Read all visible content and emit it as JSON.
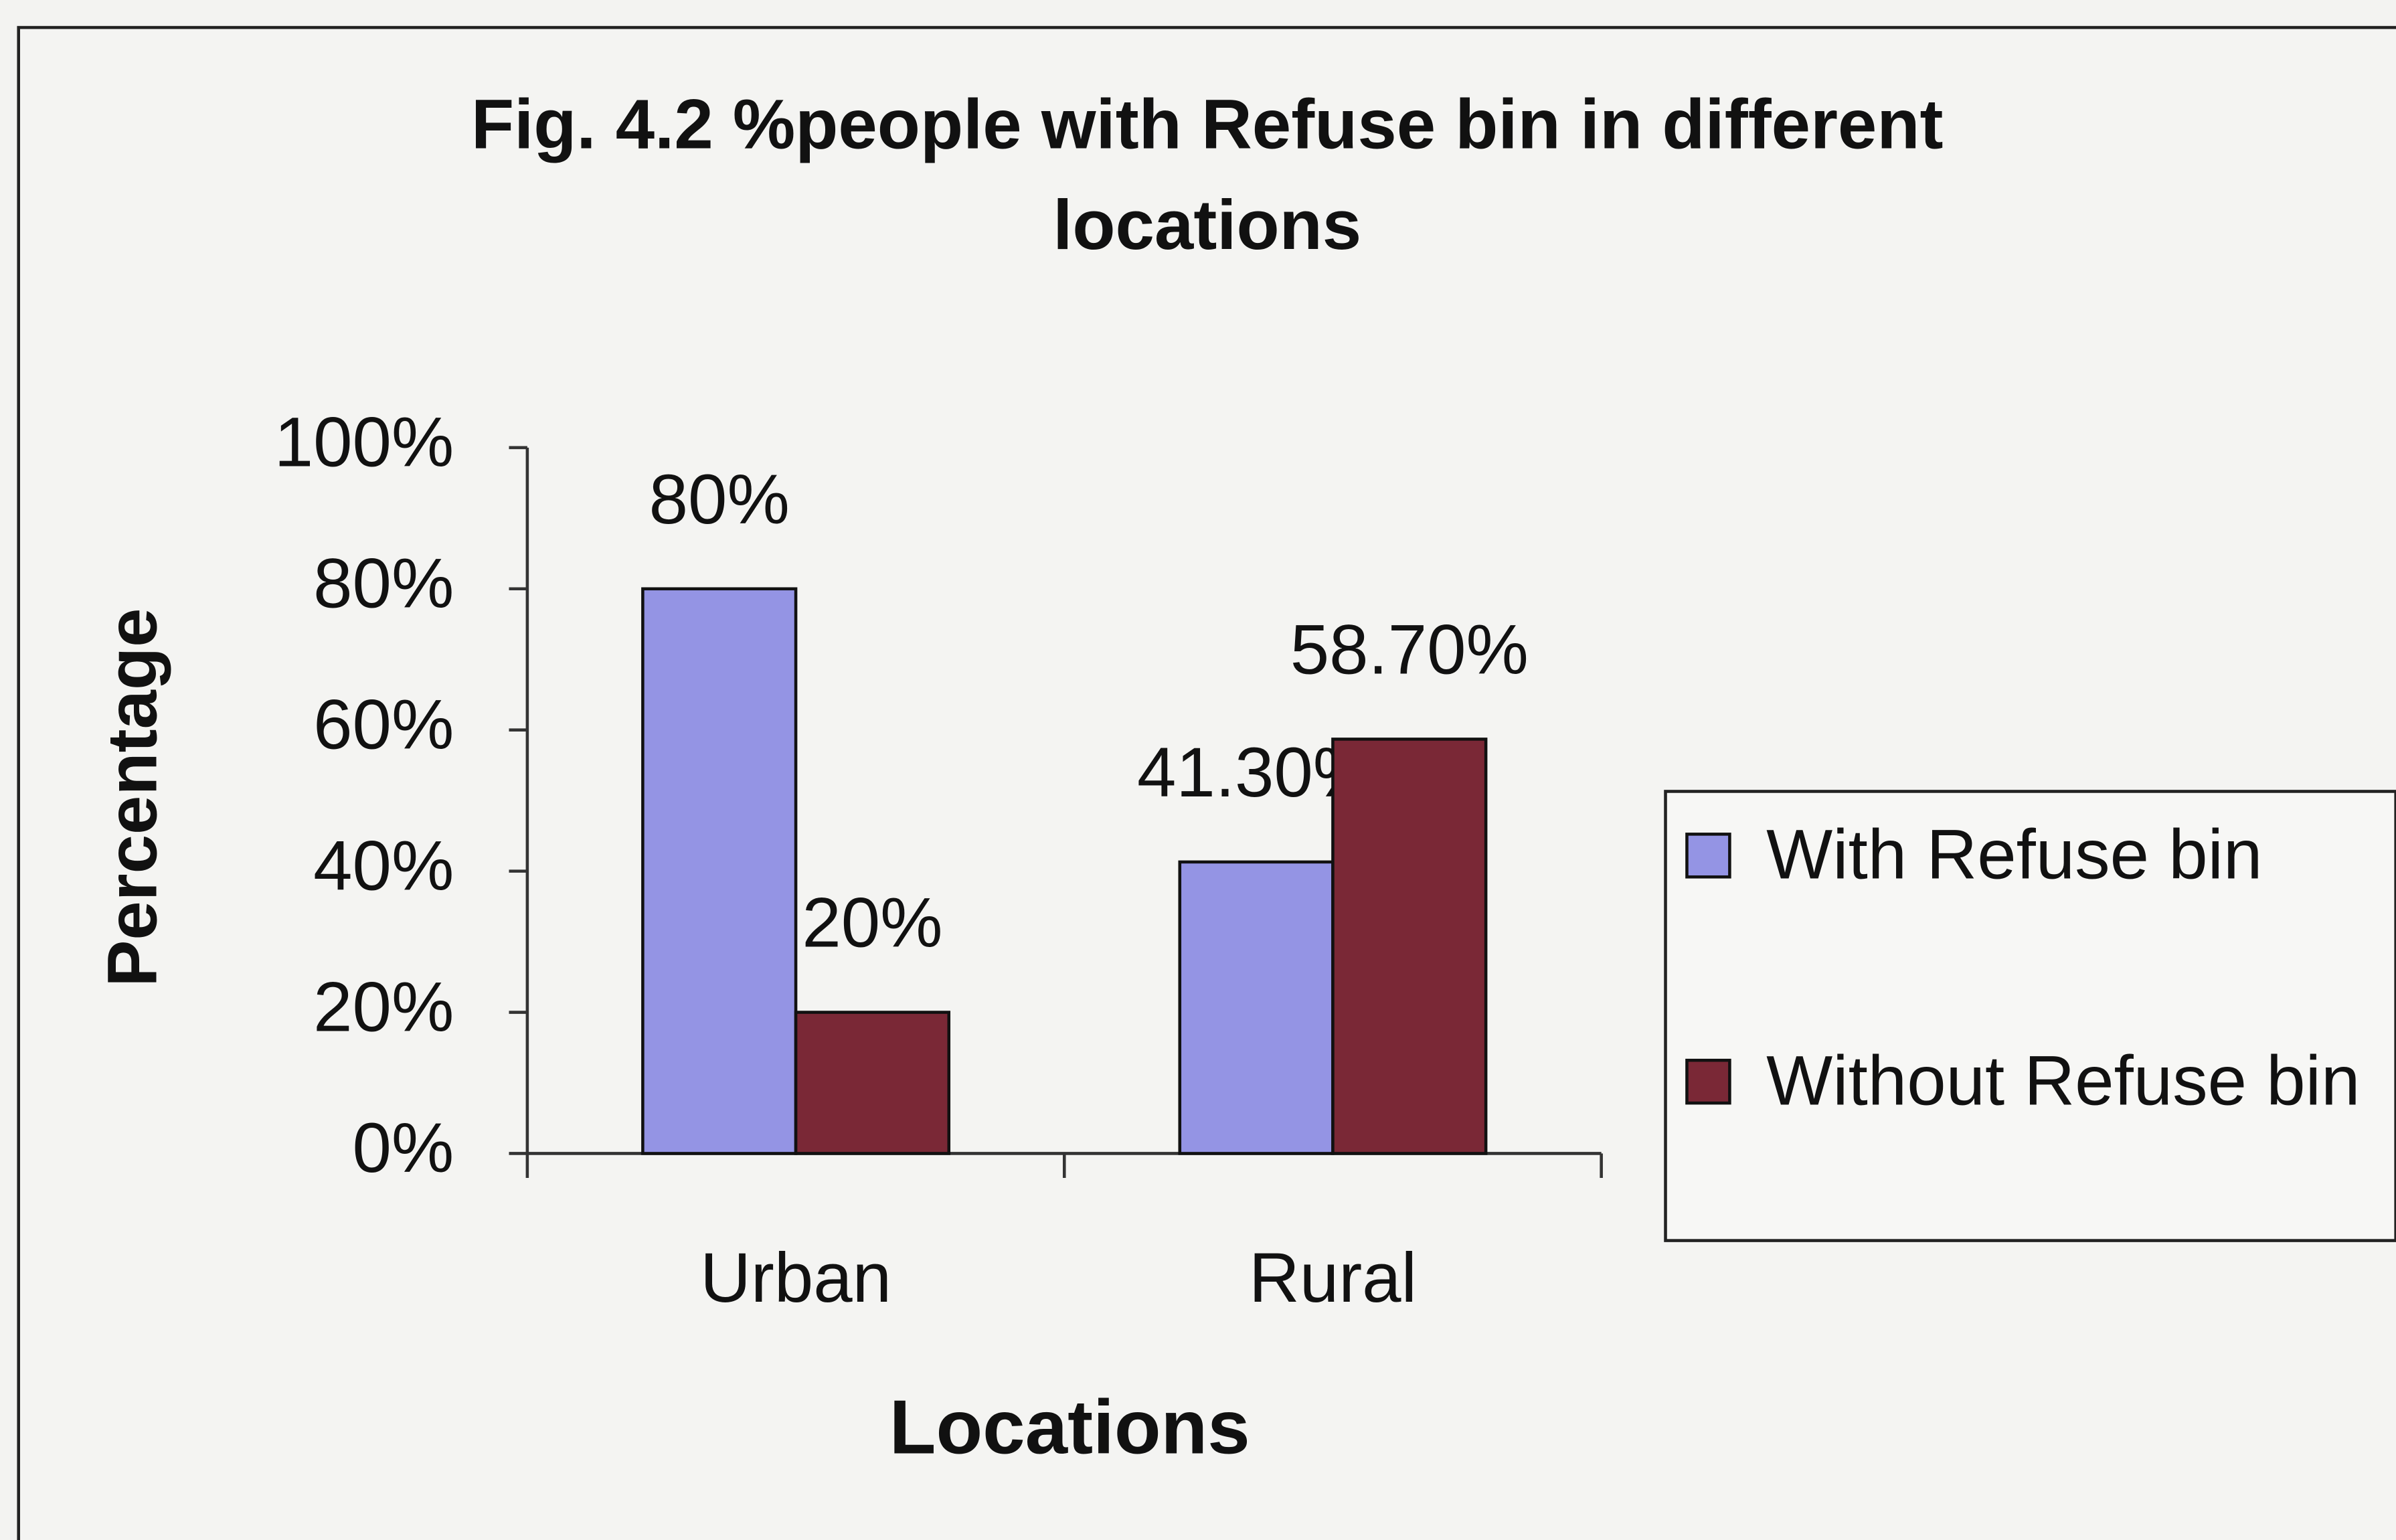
{
  "chart_data": {
    "type": "bar",
    "title": "Fig. 4.2 %people with Refuse bin in different locations",
    "xlabel": "Locations",
    "ylabel": "Percentage",
    "categories": [
      "Urban",
      "Rural"
    ],
    "series": [
      {
        "name": "With Refuse bin",
        "color": "#9494e4",
        "values": [
          80,
          41.3
        ],
        "value_labels": [
          "80%",
          "41.30%"
        ]
      },
      {
        "name": "Without Refuse bin",
        "color": "#7a2836",
        "values": [
          20,
          58.7
        ],
        "value_labels": [
          "20%",
          "58.70%"
        ]
      }
    ],
    "ylim": [
      0,
      100
    ],
    "yticks": [
      {
        "value": 0,
        "label": "0%"
      },
      {
        "value": 20,
        "label": "20%"
      },
      {
        "value": 40,
        "label": "40%"
      },
      {
        "value": 60,
        "label": "60%"
      },
      {
        "value": 80,
        "label": "80%"
      },
      {
        "value": 100,
        "label": "100%"
      }
    ],
    "legend": "right"
  }
}
